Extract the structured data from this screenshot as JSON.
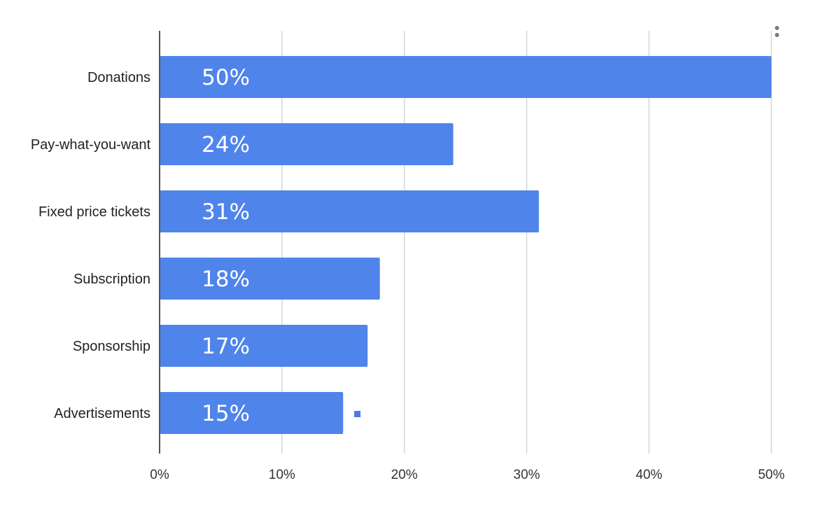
{
  "chart_data": {
    "type": "bar",
    "orientation": "horizontal",
    "categories": [
      "Donations",
      "Pay-what-you-want",
      "Fixed price tickets",
      "Subscription",
      "Sponsorship",
      "Advertisements"
    ],
    "values": [
      50,
      24,
      31,
      18,
      17,
      15
    ],
    "data_labels": [
      "50%",
      "24%",
      "31%",
      "18%",
      "17%",
      "15%"
    ],
    "x_ticks": [
      "0%",
      "10%",
      "20%",
      "30%",
      "40%",
      "50%"
    ],
    "xlim": [
      0,
      50
    ],
    "title": "",
    "xlabel": "",
    "ylabel": "",
    "grid": true,
    "legend": "none"
  },
  "colors": {
    "bar": "#4f84eb",
    "grid": "#d6d6d6",
    "axis": "#555555",
    "legend_marker": "#4a7be0",
    "menu_dots": "#7a7a7a"
  },
  "icons": {
    "menu": "more-vert-icon"
  }
}
